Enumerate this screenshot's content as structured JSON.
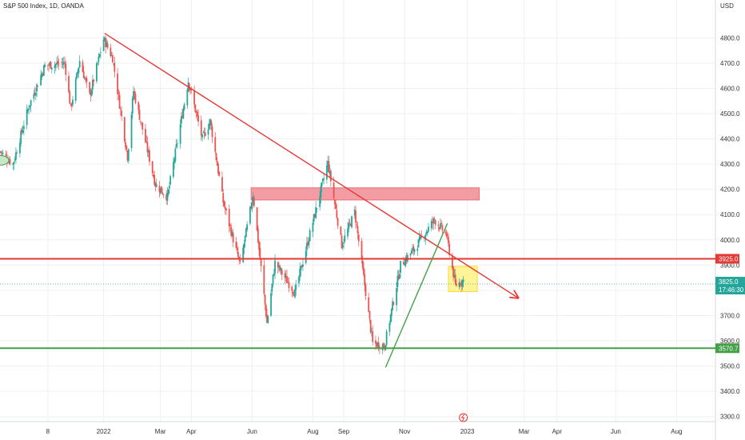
{
  "window": {
    "symbol_title": "S&P 500 Index, 1D, OANDA"
  },
  "colors": {
    "up": "#26a69a",
    "down": "#ef5350",
    "wick": "#555555",
    "resistance": "#e53935",
    "support": "#43a047",
    "trend_down": "#e53935",
    "trend_up": "#43a047",
    "supply_zone": "#f28b94",
    "consolidation_zone": "#fff176",
    "grid": "#eef0f3",
    "axis_text": "#333333"
  },
  "chart_data": {
    "type": "candlestick",
    "title": "S&P 500 Index, 1D, OANDA",
    "currency_label": "USD",
    "x_range": [
      "2021-09-21",
      "2023-09-09"
    ],
    "ylim": [
      3280,
      4950
    ],
    "scale": "linear",
    "grid": true,
    "y_ticks": [
      "4800.0",
      "4700.0",
      "4600.0",
      "4500.0",
      "4400.0",
      "4300.0",
      "4200.0",
      "4100.0",
      "4000.0",
      "3900.0",
      "3800.0",
      "3700.0",
      "3600.0",
      "3500.0",
      "3400.0",
      "3300.0"
    ],
    "x_ticks": [
      {
        "label": "8",
        "date": "2021-11-08"
      },
      {
        "label": "2022",
        "date": "2022-01-03"
      },
      {
        "label": "Mar",
        "date": "2022-03-01"
      },
      {
        "label": "Apr",
        "date": "2022-04-01"
      },
      {
        "label": "Jun",
        "date": "2022-06-01"
      },
      {
        "label": "Aug",
        "date": "2022-08-01"
      },
      {
        "label": "Sep",
        "date": "2022-09-01"
      },
      {
        "label": "Nov",
        "date": "2022-11-01"
      },
      {
        "label": "2023",
        "date": "2023-01-03"
      },
      {
        "label": "Mar",
        "date": "2023-03-01"
      },
      {
        "label": "Apr",
        "date": "2023-04-03"
      },
      {
        "label": "Jun",
        "date": "2023-06-01"
      },
      {
        "label": "Aug",
        "date": "2023-08-01"
      }
    ],
    "close_path": [
      [
        "2021-09-21",
        4350
      ],
      [
        "2021-10-04",
        4300
      ],
      [
        "2021-10-20",
        4530
      ],
      [
        "2021-11-05",
        4690
      ],
      [
        "2021-11-25",
        4700
      ],
      [
        "2021-12-01",
        4520
      ],
      [
        "2021-12-10",
        4710
      ],
      [
        "2021-12-20",
        4570
      ],
      [
        "2022-01-03",
        4796
      ],
      [
        "2022-01-12",
        4720
      ],
      [
        "2022-01-27",
        4330
      ],
      [
        "2022-02-02",
        4590
      ],
      [
        "2022-02-24",
        4220
      ],
      [
        "2022-03-08",
        4170
      ],
      [
        "2022-03-29",
        4630
      ],
      [
        "2022-04-12",
        4400
      ],
      [
        "2022-04-20",
        4470
      ],
      [
        "2022-05-03",
        4150
      ],
      [
        "2022-05-20",
        3900
      ],
      [
        "2022-06-02",
        4180
      ],
      [
        "2022-06-16",
        3670
      ],
      [
        "2022-06-24",
        3910
      ],
      [
        "2022-07-14",
        3790
      ],
      [
        "2022-08-16",
        4305
      ],
      [
        "2022-08-30",
        3980
      ],
      [
        "2022-09-12",
        4110
      ],
      [
        "2022-09-30",
        3590
      ],
      [
        "2022-10-12",
        3580
      ],
      [
        "2022-10-28",
        3900
      ],
      [
        "2022-11-10",
        3960
      ],
      [
        "2022-12-01",
        4080
      ],
      [
        "2022-12-13",
        4020
      ],
      [
        "2022-12-22",
        3820
      ],
      [
        "2022-12-30",
        3840
      ]
    ],
    "horizontal_lines": [
      {
        "price": 3925.0,
        "label": "3925.0",
        "color": "resistance"
      },
      {
        "price": 3570.7,
        "label": "3570.7",
        "color": "support"
      }
    ],
    "last_price": {
      "label": "3825.0",
      "countdown": "17:46:30",
      "price": 3825.0
    },
    "trend_lines": [
      {
        "name": "descending-resistance",
        "from": [
          "2022-01-04",
          4818
        ],
        "to": [
          "2023-02-23",
          3770
        ],
        "color": "trend_down",
        "arrow": true
      },
      {
        "name": "ascending-support",
        "from": [
          "2022-10-13",
          3495
        ],
        "to": [
          "2022-12-14",
          4065
        ],
        "color": "trend_up",
        "arrow": false
      }
    ],
    "zones": [
      {
        "name": "supply-zone",
        "x": [
          "2022-05-31",
          "2023-01-15"
        ],
        "y": [
          4158,
          4206
        ],
        "color": "supply_zone"
      },
      {
        "name": "consolidation-zone",
        "x": [
          "2022-12-15",
          "2023-01-13"
        ],
        "y": [
          3795,
          3895
        ],
        "color": "consolidation_zone"
      }
    ],
    "markers": [
      {
        "name": "earlier-annotation-ellipse",
        "date": "2021-09-21",
        "price": 4315
      }
    ]
  }
}
